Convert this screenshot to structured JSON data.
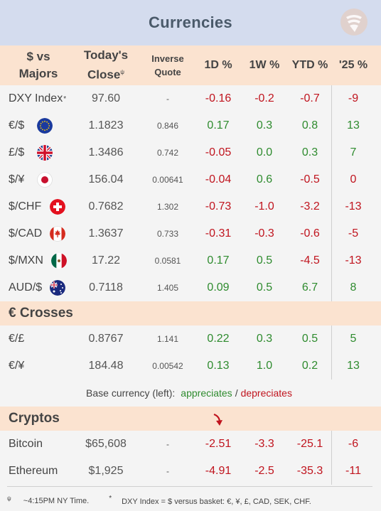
{
  "title": "Currencies",
  "header": {
    "col1_line1": "$ vs",
    "col1_line2": "Majors",
    "col2_line1": "Today's",
    "col2_line2": "Close",
    "col2_sup": "ψ",
    "col3_line1": "Inverse",
    "col3_line2": "Quote",
    "col4": "1D %",
    "col5": "1W %",
    "col6": "YTD %",
    "col7": "'25 %"
  },
  "majors": [
    {
      "name": "DXY Index",
      "sup": "*",
      "flag": "",
      "close": "97.60",
      "inverse": "-",
      "d1": "-0.16",
      "w1": "-0.2",
      "ytd": "-0.7",
      "y25": "-9"
    },
    {
      "name": "€/$",
      "sup": "",
      "flag": "eu-flag-icon",
      "close": "1.1823",
      "inverse": "0.846",
      "d1": "0.17",
      "w1": "0.3",
      "ytd": "0.8",
      "y25": "13"
    },
    {
      "name": "£/$",
      "sup": "",
      "flag": "uk-flag-icon",
      "close": "1.3486",
      "inverse": "0.742",
      "d1": "-0.05",
      "w1": "0.0",
      "ytd": "0.3",
      "y25": "7"
    },
    {
      "name": "$/¥",
      "sup": "",
      "flag": "japan-flag-icon",
      "close": "156.04",
      "inverse": "0.00641",
      "d1": "-0.04",
      "w1": "0.6",
      "ytd": "-0.5",
      "y25": "0"
    },
    {
      "name": "$/CHF",
      "sup": "",
      "flag": "swiss-flag-icon",
      "close": "0.7682",
      "inverse": "1.302",
      "d1": "-0.73",
      "w1": "-1.0",
      "ytd": "-3.2",
      "y25": "-13"
    },
    {
      "name": "$/CAD",
      "sup": "",
      "flag": "canada-flag-icon",
      "close": "1.3637",
      "inverse": "0.733",
      "d1": "-0.31",
      "w1": "-0.3",
      "ytd": "-0.6",
      "y25": "-5"
    },
    {
      "name": "$/MXN",
      "sup": "",
      "flag": "mexico-flag-icon",
      "close": "17.22",
      "inverse": "0.0581",
      "d1": "0.17",
      "w1": "0.5",
      "ytd": "-4.5",
      "y25": "-13"
    },
    {
      "name": "AUD/$",
      "sup": "",
      "flag": "australia-flag-icon",
      "close": "0.7118",
      "inverse": "1.405",
      "d1": "0.09",
      "w1": "0.5",
      "ytd": "6.7",
      "y25": "8"
    }
  ],
  "crosses_title": "€ Crosses",
  "crosses": [
    {
      "name": "€/£",
      "close": "0.8767",
      "inverse": "1.141",
      "d1": "0.22",
      "w1": "0.3",
      "ytd": "0.5",
      "y25": "5"
    },
    {
      "name": "€/¥",
      "close": "184.48",
      "inverse": "0.00542",
      "d1": "0.13",
      "w1": "1.0",
      "ytd": "0.2",
      "y25": "13"
    }
  ],
  "legend": {
    "prefix": "Base currency (left):",
    "appreciates": "appreciates",
    "sep": "/",
    "depreciates": "depreciates"
  },
  "cryptos_title": "Cryptos",
  "cryptos": [
    {
      "name": "Bitcoin",
      "close": "$65,608",
      "inverse": "-",
      "d1": "-2.51",
      "w1": "-3.3",
      "ytd": "-25.1",
      "y25": "-6"
    },
    {
      "name": "Ethereum",
      "close": "$1,925",
      "inverse": "-",
      "d1": "-4.91",
      "w1": "-2.5",
      "ytd": "-35.3",
      "y25": "-11"
    }
  ],
  "footer": {
    "note1_sym": "ψ",
    "note1": "~4:15PM NY Time.",
    "note2_sym": "*",
    "note2": "DXY Index = $ versus basket: €, ¥, £, CAD, SEK, CHF."
  },
  "colors": {
    "positive": "#2e8b2e",
    "negative": "#c0141e",
    "header_bg": "#fbe3d0",
    "title_bg": "#d4dcee"
  }
}
